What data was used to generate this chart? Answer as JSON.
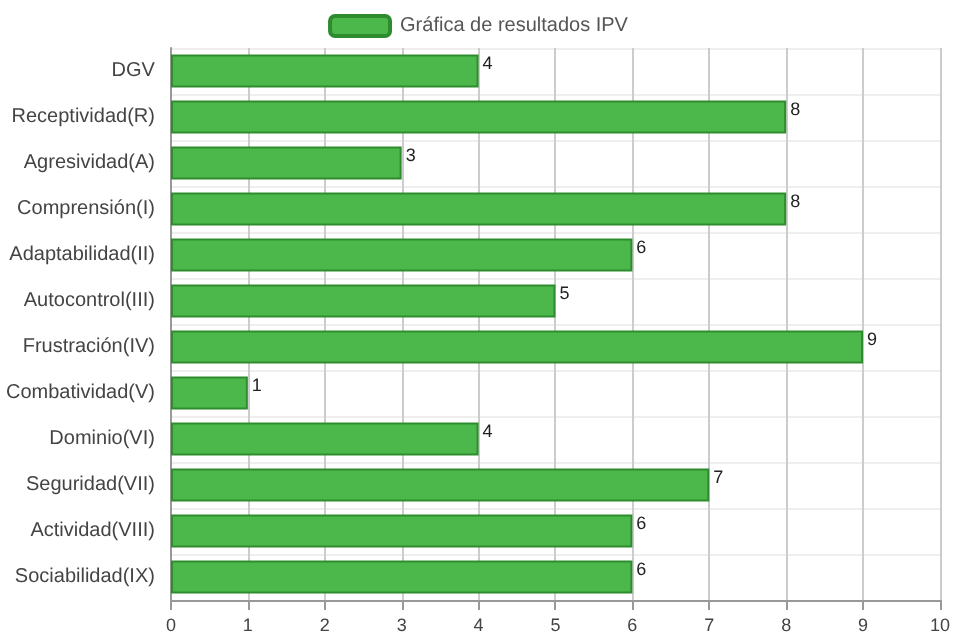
{
  "chart_data": {
    "type": "bar",
    "orientation": "horizontal",
    "categories": [
      "DGV",
      "Receptividad(R)",
      "Agresividad(A)",
      "Comprensión(I)",
      "Adaptabilidad(II)",
      "Autocontrol(III)",
      "Frustración(IV)",
      "Combatividad(V)",
      "Dominio(VI)",
      "Seguridad(VII)",
      "Actividad(VIII)",
      "Sociabilidad(IX)"
    ],
    "series": [
      {
        "name": "Gráfica de resultados IPV",
        "color": "#4cb84c",
        "values": [
          4,
          8,
          3,
          8,
          6,
          5,
          9,
          1,
          4,
          7,
          6,
          6
        ]
      }
    ],
    "xlim": [
      0,
      10
    ],
    "xticks": [
      0,
      1,
      2,
      3,
      4,
      5,
      6,
      7,
      8,
      9,
      10
    ],
    "grid": true,
    "legend": "top",
    "data_labels": true
  }
}
